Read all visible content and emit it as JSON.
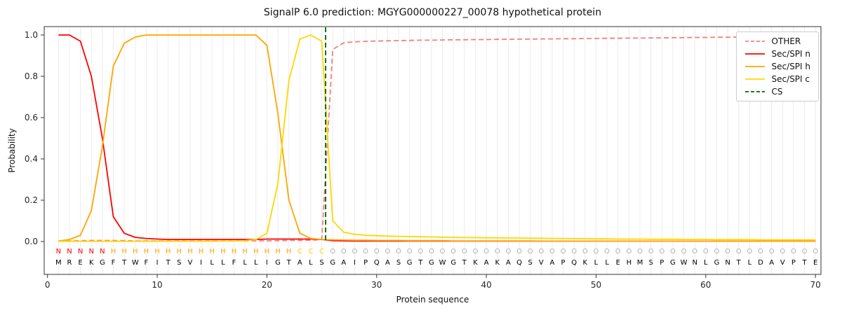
{
  "header": {
    "title": "SignalP 6.0 prediction: MGYG000000227_00078 hypothetical protein"
  },
  "axes": {
    "y_label": "Probability",
    "x_label": "Protein sequence"
  },
  "legend": {
    "items": [
      {
        "label": "OTHER",
        "color": "#f08080",
        "dash": true
      },
      {
        "label": "Sec/SPI n",
        "color": "#ff0000",
        "dash": false
      },
      {
        "label": "Sec/SPI h",
        "color": "#ffa500",
        "dash": false
      },
      {
        "label": "Sec/SPI c",
        "color": "#ffd700",
        "dash": false
      },
      {
        "label": "CS",
        "color": "#006400",
        "dash": true
      }
    ]
  },
  "chart_data": {
    "type": "line",
    "title": "SignalP 6.0 prediction: MGYG000000227_00078 hypothetical protein",
    "xlabel": "Protein sequence",
    "ylabel": "Probability",
    "xlim": [
      -0.3,
      70.5
    ],
    "ylim": [
      0.0,
      1.0
    ],
    "grid": "vertical-per-residue",
    "legend_position": "upper-right",
    "x_start": 1,
    "xticks": [
      0,
      10,
      20,
      30,
      40,
      50,
      60,
      70
    ],
    "yticks": [
      0.0,
      0.2,
      0.4,
      0.6,
      0.8,
      1.0
    ],
    "cs_position": 25.35,
    "cs_color": "#006400",
    "series": [
      {
        "id": "other",
        "name": "OTHER",
        "color": "#f08080",
        "dash": true,
        "values": [
          0.003,
          0.003,
          0.004,
          0.005,
          0.005,
          0.005,
          0.004,
          0.003,
          0.003,
          0.003,
          0.003,
          0.003,
          0.003,
          0.003,
          0.003,
          0.003,
          0.003,
          0.003,
          0.003,
          0.003,
          0.004,
          0.005,
          0.005,
          0.006,
          0.01,
          0.93,
          0.962,
          0.967,
          0.969,
          0.971,
          0.972,
          0.973,
          0.974,
          0.975,
          0.975,
          0.976,
          0.977,
          0.977,
          0.978,
          0.978,
          0.979,
          0.979,
          0.98,
          0.98,
          0.981,
          0.981,
          0.982,
          0.982,
          0.983,
          0.983,
          0.984,
          0.984,
          0.985,
          0.985,
          0.986,
          0.986,
          0.987,
          0.987,
          0.988,
          0.988,
          0.989,
          0.989,
          0.99,
          0.99,
          0.991,
          0.991,
          0.992,
          0.992,
          0.993,
          0.993
        ]
      },
      {
        "id": "sec-spi-n",
        "name": "Sec/SPI n",
        "color": "#ff0000",
        "dash": false,
        "values": [
          1.0,
          1.0,
          0.97,
          0.8,
          0.5,
          0.12,
          0.04,
          0.02,
          0.015,
          0.012,
          0.01,
          0.01,
          0.01,
          0.01,
          0.01,
          0.01,
          0.01,
          0.01,
          0.01,
          0.012,
          0.012,
          0.012,
          0.012,
          0.012,
          0.01,
          0.004,
          0.003,
          0.002,
          0.002,
          0.002,
          0.002,
          0.002,
          0.002,
          0.002,
          0.002,
          0.002,
          0.002,
          0.002,
          0.002,
          0.002,
          0.002,
          0.002,
          0.002,
          0.002,
          0.002,
          0.002,
          0.002,
          0.002,
          0.002,
          0.002,
          0.002,
          0.002,
          0.002,
          0.002,
          0.002,
          0.002,
          0.002,
          0.002,
          0.002,
          0.002,
          0.002,
          0.002,
          0.002,
          0.002,
          0.002,
          0.002,
          0.002,
          0.002,
          0.002,
          0.002
        ]
      },
      {
        "id": "sec-spi-h",
        "name": "Sec/SPI h",
        "color": "#ffa500",
        "dash": false,
        "values": [
          0.002,
          0.01,
          0.03,
          0.15,
          0.46,
          0.85,
          0.96,
          0.99,
          1.0,
          1.0,
          1.0,
          1.0,
          1.0,
          1.0,
          1.0,
          1.0,
          1.0,
          1.0,
          1.0,
          0.95,
          0.62,
          0.2,
          0.04,
          0.015,
          0.01,
          0.008,
          0.007,
          0.006,
          0.006,
          0.005,
          0.005,
          0.005,
          0.004,
          0.004,
          0.004,
          0.004,
          0.003,
          0.003,
          0.003,
          0.003,
          0.003,
          0.003,
          0.003,
          0.003,
          0.002,
          0.002,
          0.002,
          0.002,
          0.002,
          0.002,
          0.002,
          0.002,
          0.002,
          0.002,
          0.002,
          0.002,
          0.002,
          0.002,
          0.002,
          0.002,
          0.002,
          0.002,
          0.002,
          0.002,
          0.002,
          0.002,
          0.002,
          0.002,
          0.002,
          0.002
        ]
      },
      {
        "id": "sec-spi-c",
        "name": "Sec/SPI c",
        "color": "#ffd700",
        "dash": false,
        "values": [
          0.001,
          0.001,
          0.001,
          0.001,
          0.001,
          0.001,
          0.001,
          0.001,
          0.001,
          0.001,
          0.001,
          0.001,
          0.001,
          0.001,
          0.001,
          0.002,
          0.002,
          0.004,
          0.01,
          0.04,
          0.28,
          0.78,
          0.98,
          1.0,
          0.97,
          0.1,
          0.045,
          0.035,
          0.03,
          0.028,
          0.026,
          0.025,
          0.024,
          0.023,
          0.022,
          0.021,
          0.02,
          0.019,
          0.019,
          0.018,
          0.018,
          0.017,
          0.017,
          0.016,
          0.016,
          0.015,
          0.015,
          0.014,
          0.014,
          0.013,
          0.013,
          0.012,
          0.012,
          0.012,
          0.011,
          0.011,
          0.011,
          0.01,
          0.01,
          0.01,
          0.009,
          0.009,
          0.009,
          0.009,
          0.008,
          0.008,
          0.008,
          0.008,
          0.008,
          0.008
        ]
      }
    ],
    "sequence": [
      "M",
      "R",
      "E",
      "K",
      "G",
      "F",
      "T",
      "W",
      "F",
      "I",
      "T",
      "S",
      "V",
      "I",
      "L",
      "L",
      "F",
      "L",
      "L",
      "I",
      "G",
      "T",
      "A",
      "L",
      "S",
      "G",
      "A",
      "I",
      "P",
      "Q",
      "A",
      "S",
      "G",
      "T",
      "G",
      "W",
      "G",
      "T",
      "K",
      "A",
      "K",
      "A",
      "Q",
      "S",
      "V",
      "A",
      "P",
      "Q",
      "K",
      "L",
      "L",
      "E",
      "H",
      "M",
      "S",
      "P",
      "G",
      "W",
      "N",
      "L",
      "G",
      "N",
      "T",
      "L",
      "D",
      "A",
      "V",
      "P",
      "T",
      "E"
    ],
    "region_labels": [
      "N",
      "N",
      "N",
      "N",
      "N",
      "H",
      "H",
      "H",
      "H",
      "H",
      "H",
      "H",
      "H",
      "H",
      "H",
      "H",
      "H",
      "H",
      "H",
      "H",
      "H",
      "H",
      "C",
      "C",
      "C",
      "O",
      "O",
      "O",
      "O",
      "O",
      "O",
      "O",
      "O",
      "O",
      "O",
      "O",
      "O",
      "O",
      "O",
      "O",
      "O",
      "O",
      "O",
      "O",
      "O",
      "O",
      "O",
      "O",
      "O",
      "O",
      "O",
      "O",
      "O",
      "O",
      "O",
      "O",
      "O",
      "O",
      "O",
      "O",
      "O",
      "O",
      "O",
      "O",
      "O",
      "O",
      "O",
      "O",
      "O",
      "O"
    ],
    "region_colors": {
      "N": "#ff0000",
      "H": "#ffa500",
      "C": "#ffd700",
      "O": "#b0b0b0"
    }
  }
}
